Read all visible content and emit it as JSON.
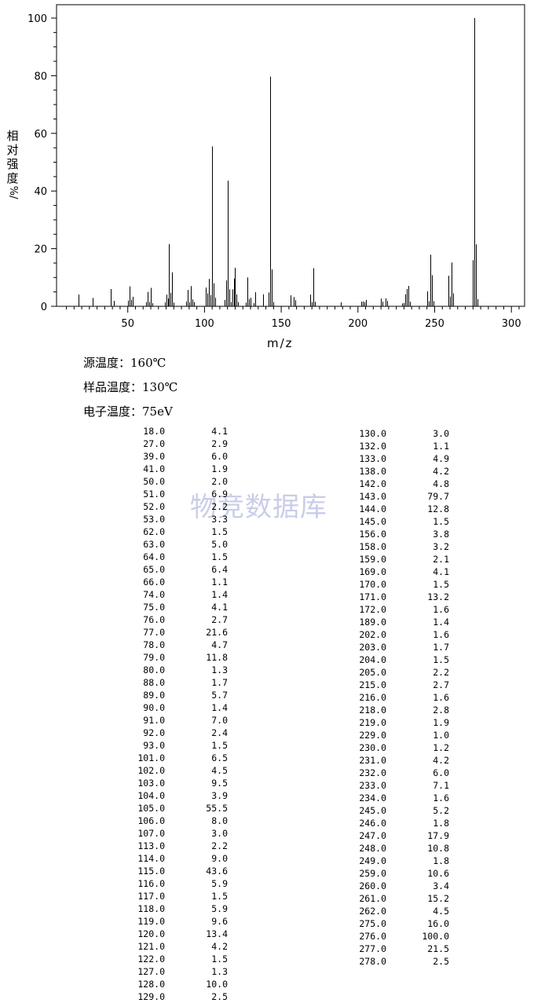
{
  "chart_data": {
    "type": "bar",
    "title": "",
    "xlabel": "m/z",
    "ylabel": "相对强度/%",
    "xlim": [
      10,
      310
    ],
    "ylim": [
      0,
      100
    ],
    "x_ticks": [
      50,
      100,
      150,
      200,
      250,
      300
    ],
    "y_ticks": [
      0,
      20,
      40,
      60,
      80,
      100
    ],
    "x_tick_labels": [
      "50",
      "100",
      "150",
      "200",
      "250",
      "300"
    ],
    "y_tick_labels": [
      "0",
      "20",
      "40",
      "60",
      "80",
      "100"
    ],
    "grid": false,
    "peaks": [
      {
        "mz": "18.0",
        "intensity": "4.1"
      },
      {
        "mz": "27.0",
        "intensity": "2.9"
      },
      {
        "mz": "39.0",
        "intensity": "6.0"
      },
      {
        "mz": "41.0",
        "intensity": "1.9"
      },
      {
        "mz": "50.0",
        "intensity": "2.0"
      },
      {
        "mz": "51.0",
        "intensity": "6.9"
      },
      {
        "mz": "52.0",
        "intensity": "2.2"
      },
      {
        "mz": "53.0",
        "intensity": "3.3"
      },
      {
        "mz": "62.0",
        "intensity": "1.5"
      },
      {
        "mz": "63.0",
        "intensity": "5.0"
      },
      {
        "mz": "64.0",
        "intensity": "1.5"
      },
      {
        "mz": "65.0",
        "intensity": "6.4"
      },
      {
        "mz": "66.0",
        "intensity": "1.1"
      },
      {
        "mz": "74.0",
        "intensity": "1.4"
      },
      {
        "mz": "75.0",
        "intensity": "4.1"
      },
      {
        "mz": "76.0",
        "intensity": "2.7"
      },
      {
        "mz": "77.0",
        "intensity": "21.6"
      },
      {
        "mz": "78.0",
        "intensity": "4.7"
      },
      {
        "mz": "79.0",
        "intensity": "11.8"
      },
      {
        "mz": "80.0",
        "intensity": "1.3"
      },
      {
        "mz": "88.0",
        "intensity": "1.7"
      },
      {
        "mz": "89.0",
        "intensity": "5.7"
      },
      {
        "mz": "90.0",
        "intensity": "1.4"
      },
      {
        "mz": "91.0",
        "intensity": "7.0"
      },
      {
        "mz": "92.0",
        "intensity": "2.4"
      },
      {
        "mz": "93.0",
        "intensity": "1.5"
      },
      {
        "mz": "101.0",
        "intensity": "6.5"
      },
      {
        "mz": "102.0",
        "intensity": "4.5"
      },
      {
        "mz": "103.0",
        "intensity": "9.5"
      },
      {
        "mz": "104.0",
        "intensity": "3.9"
      },
      {
        "mz": "105.0",
        "intensity": "55.5"
      },
      {
        "mz": "106.0",
        "intensity": "8.0"
      },
      {
        "mz": "107.0",
        "intensity": "3.0"
      },
      {
        "mz": "113.0",
        "intensity": "2.2"
      },
      {
        "mz": "114.0",
        "intensity": "9.0"
      },
      {
        "mz": "115.0",
        "intensity": "43.6"
      },
      {
        "mz": "116.0",
        "intensity": "5.9"
      },
      {
        "mz": "117.0",
        "intensity": "1.5"
      },
      {
        "mz": "118.0",
        "intensity": "5.9"
      },
      {
        "mz": "119.0",
        "intensity": "9.6"
      },
      {
        "mz": "120.0",
        "intensity": "13.4"
      },
      {
        "mz": "121.0",
        "intensity": "4.2"
      },
      {
        "mz": "122.0",
        "intensity": "1.5"
      },
      {
        "mz": "127.0",
        "intensity": "1.3"
      },
      {
        "mz": "128.0",
        "intensity": "10.0"
      },
      {
        "mz": "129.0",
        "intensity": "2.5"
      },
      {
        "mz": "130.0",
        "intensity": "3.0"
      },
      {
        "mz": "132.0",
        "intensity": "1.1"
      },
      {
        "mz": "133.0",
        "intensity": "4.9"
      },
      {
        "mz": "138.0",
        "intensity": "4.2"
      },
      {
        "mz": "142.0",
        "intensity": "4.8"
      },
      {
        "mz": "143.0",
        "intensity": "79.7"
      },
      {
        "mz": "144.0",
        "intensity": "12.8"
      },
      {
        "mz": "145.0",
        "intensity": "1.5"
      },
      {
        "mz": "156.0",
        "intensity": "3.8"
      },
      {
        "mz": "158.0",
        "intensity": "3.2"
      },
      {
        "mz": "159.0",
        "intensity": "2.1"
      },
      {
        "mz": "169.0",
        "intensity": "4.1"
      },
      {
        "mz": "170.0",
        "intensity": "1.5"
      },
      {
        "mz": "171.0",
        "intensity": "13.2"
      },
      {
        "mz": "172.0",
        "intensity": "1.6"
      },
      {
        "mz": "189.0",
        "intensity": "1.4"
      },
      {
        "mz": "202.0",
        "intensity": "1.6"
      },
      {
        "mz": "203.0",
        "intensity": "1.7"
      },
      {
        "mz": "204.0",
        "intensity": "1.5"
      },
      {
        "mz": "205.0",
        "intensity": "2.2"
      },
      {
        "mz": "215.0",
        "intensity": "2.7"
      },
      {
        "mz": "216.0",
        "intensity": "1.6"
      },
      {
        "mz": "218.0",
        "intensity": "2.8"
      },
      {
        "mz": "219.0",
        "intensity": "1.9"
      },
      {
        "mz": "229.0",
        "intensity": "1.0"
      },
      {
        "mz": "230.0",
        "intensity": "1.2"
      },
      {
        "mz": "231.0",
        "intensity": "4.2"
      },
      {
        "mz": "232.0",
        "intensity": "6.0"
      },
      {
        "mz": "233.0",
        "intensity": "7.1"
      },
      {
        "mz": "234.0",
        "intensity": "1.6"
      },
      {
        "mz": "245.0",
        "intensity": "5.2"
      },
      {
        "mz": "246.0",
        "intensity": "1.8"
      },
      {
        "mz": "247.0",
        "intensity": "17.9"
      },
      {
        "mz": "248.0",
        "intensity": "10.8"
      },
      {
        "mz": "249.0",
        "intensity": "1.8"
      },
      {
        "mz": "259.0",
        "intensity": "10.6"
      },
      {
        "mz": "260.0",
        "intensity": "3.4"
      },
      {
        "mz": "261.0",
        "intensity": "15.2"
      },
      {
        "mz": "262.0",
        "intensity": "4.5"
      },
      {
        "mz": "275.0",
        "intensity": "16.0"
      },
      {
        "mz": "276.0",
        "intensity": "100.0"
      },
      {
        "mz": "277.0",
        "intensity": "21.5"
      },
      {
        "mz": "278.0",
        "intensity": "2.5"
      }
    ]
  },
  "labels": {
    "ylabel_chars": [
      "相",
      "对",
      "强",
      "度",
      "%/"
    ],
    "xlabel": "m/z"
  },
  "conditions": {
    "source_temp": "源温度：160℃",
    "sample_temp": "样品温度：130℃",
    "electron_energy": "电子温度：75eV"
  },
  "watermark": "物竞数据库",
  "colors": {
    "line": "#000000",
    "watermark": "#c9cde8",
    "background": "#ffffff"
  }
}
